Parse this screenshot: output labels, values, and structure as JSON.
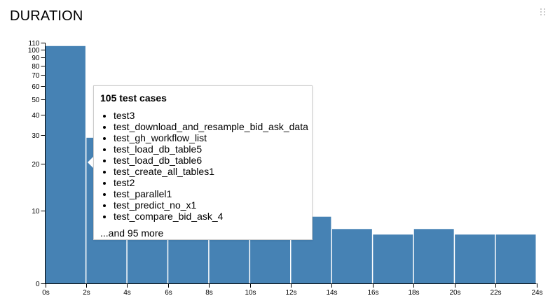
{
  "header": {
    "title": "DURATION",
    "drag_icon": "drag-handle-icon"
  },
  "tooltip": {
    "title": "105 test cases",
    "items": [
      "test3",
      "test_download_and_resample_bid_ask_data",
      "test_gh_workflow_list",
      "test_load_db_table5",
      "test_load_db_table6",
      "test_create_all_tables1",
      "test2",
      "test_parallel1",
      "test_predict_no_x1",
      "test_compare_bid_ask_4"
    ],
    "more": "...and 95 more"
  },
  "colors": {
    "bar": "#4682b4",
    "text": "#000000",
    "handle": "#cccccc"
  },
  "chart_data": {
    "type": "bar",
    "title": "DURATION",
    "x_scale": "linear",
    "y_scale": "symlog",
    "x_ticks": [
      0,
      2,
      4,
      6,
      8,
      10,
      12,
      14,
      16,
      18,
      20,
      22,
      24
    ],
    "x_tick_labels": [
      "0s",
      "2s",
      "4s",
      "6s",
      "8s",
      "10s",
      "12s",
      "14s",
      "16s",
      "18s",
      "20s",
      "22s",
      "24s"
    ],
    "y_ticks": [
      0,
      10,
      20,
      30,
      40,
      50,
      60,
      70,
      80,
      90,
      100,
      110
    ],
    "y_tick_labels": [
      "0",
      "10",
      "20",
      "30",
      "40",
      "50",
      "60",
      "70",
      "80",
      "90",
      "100",
      "110"
    ],
    "xlim": [
      0,
      24
    ],
    "ylim": [
      0,
      110
    ],
    "bin_width_s": 2,
    "bins": [
      {
        "x0": 0,
        "x1": 2,
        "count": 105
      },
      {
        "x0": 2,
        "x1": 4,
        "count": 29
      },
      {
        "x0": 4,
        "x1": 6,
        "count": 5
      },
      {
        "x0": 6,
        "x1": 8,
        "count": 5
      },
      {
        "x0": 8,
        "x1": 10,
        "count": 5
      },
      {
        "x0": 10,
        "x1": 12,
        "count": 5
      },
      {
        "x0": 12,
        "x1": 14,
        "count": 8
      },
      {
        "x0": 14,
        "x1": 16,
        "count": 5
      },
      {
        "x0": 16,
        "x1": 18,
        "count": 4
      },
      {
        "x0": 18,
        "x1": 20,
        "count": 5
      },
      {
        "x0": 20,
        "x1": 22,
        "count": 4
      },
      {
        "x0": 22,
        "x1": 24,
        "count": 4
      }
    ],
    "grid": false
  }
}
